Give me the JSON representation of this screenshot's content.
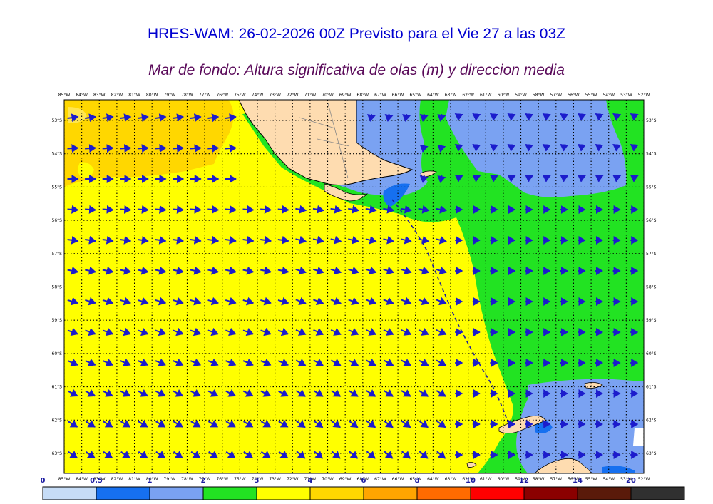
{
  "header": {
    "title": "HRES-WAM: 26-02-2026 00Z Previsto para el Vie 27 a las 03Z",
    "subtitle": "Mar de fondo: Altura significativa de olas (m) y direccion media"
  },
  "map": {
    "lon_labels": [
      "85°W",
      "84°W",
      "83°W",
      "82°W",
      "81°W",
      "80°W",
      "79°W",
      "78°W",
      "77°W",
      "76°W",
      "75°W",
      "74°W",
      "73°W",
      "72°W",
      "71°W",
      "70°W",
      "69°W",
      "68°W",
      "67°W",
      "66°W",
      "65°W",
      "64°W",
      "63°W",
      "62°W",
      "61°W",
      "60°W",
      "59°W",
      "58°W",
      "57°W",
      "56°W",
      "55°W",
      "54°W",
      "53°W",
      "52°W"
    ],
    "lat_labels": [
      "53°S",
      "54°S",
      "55°S",
      "56°S",
      "57°S",
      "58°S",
      "59°S",
      "60°S",
      "61°S",
      "62°S",
      "63°S"
    ],
    "colors": {
      "ocean_yellow": "#ffff00",
      "gold": "#ffd700",
      "green": "#22e322",
      "light_blue": "#7aa2f2",
      "blue": "#1670f0",
      "land": "#fedcb0",
      "arrow": "#1c1ccc",
      "dashed_line": "#1a1aa0"
    }
  },
  "colorbar": {
    "labels": [
      "0",
      "0.5",
      "1",
      "2",
      "3",
      "4",
      "6",
      "8",
      "10",
      "12",
      "14",
      "20"
    ],
    "colors": [
      "#c6dcf6",
      "#1670f0",
      "#7aa2f2",
      "#22e322",
      "#ffff00",
      "#ffd700",
      "#ffa500",
      "#ff6b00",
      "#ff0000",
      "#8b0000",
      "#5a1a0a",
      "#303030"
    ]
  }
}
